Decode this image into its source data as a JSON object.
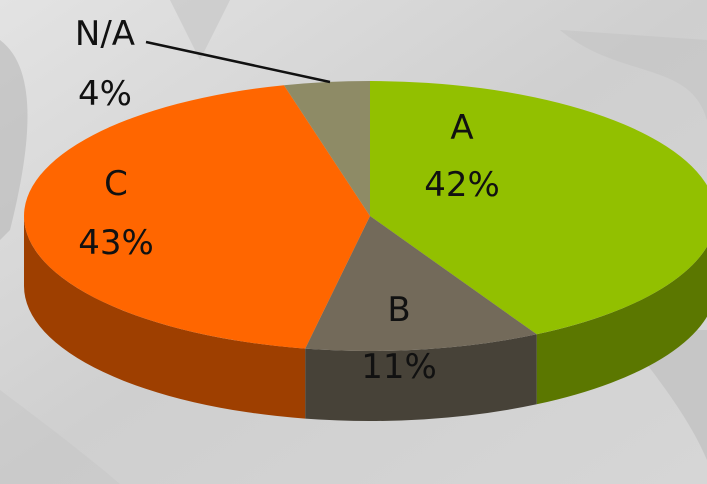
{
  "chart_data": {
    "type": "pie",
    "title": "",
    "slices": [
      {
        "label": "A",
        "percent_text": "42%",
        "value": 42,
        "color": "#92c000"
      },
      {
        "label": "B",
        "percent_text": "11%",
        "value": 11,
        "color": "#736a5a"
      },
      {
        "label": "C",
        "percent_text": "43%",
        "value": 43,
        "color": "#ff6600"
      },
      {
        "label": "N/A",
        "percent_text": "4%",
        "value": 4,
        "color": "#8e8b66"
      }
    ],
    "style": "3d-tilted",
    "legend": "none",
    "data_labels": "category-and-percent"
  }
}
